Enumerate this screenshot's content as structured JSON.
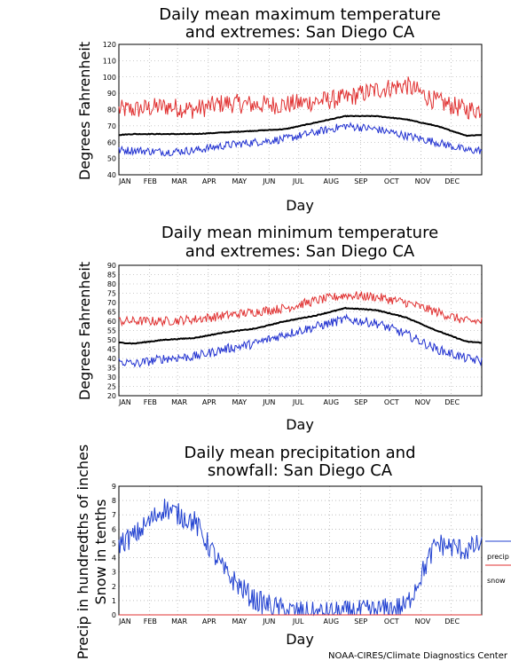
{
  "credit": "NOAA-CIRES/Climate Diagnostics Center",
  "months": [
    "JAN",
    "FEB",
    "MAR",
    "APR",
    "MAY",
    "JUN",
    "JUL",
    "AUG",
    "SEP",
    "OCT",
    "NOV",
    "DEC"
  ],
  "colors": {
    "max": "#e03030",
    "min": "#2030d0",
    "mean": "#000000",
    "precip": "#2040d0",
    "snow": "#e03030",
    "grid": "#999999"
  },
  "chart_data": [
    {
      "type": "line",
      "title_line1": "Daily mean maximum temperature",
      "title_line2": "and extremes: San Diego CA",
      "xlabel": "Day",
      "ylabel": "Degrees Fahrenheit",
      "ylim": [
        40,
        120
      ],
      "yticks": [
        40,
        50,
        60,
        70,
        80,
        90,
        100,
        110,
        120
      ],
      "grid": true,
      "series": [
        {
          "key": "max",
          "values_by_month": [
            80,
            82,
            80,
            84,
            83,
            83,
            85,
            87,
            92,
            95,
            85,
            80
          ]
        },
        {
          "key": "mean",
          "values_by_month": [
            65,
            65,
            65,
            66,
            67,
            68,
            72,
            76,
            76,
            74,
            70,
            64
          ]
        },
        {
          "key": "min",
          "values_by_month": [
            55,
            54,
            55,
            58,
            60,
            62,
            66,
            70,
            68,
            64,
            60,
            55
          ]
        }
      ]
    },
    {
      "type": "line",
      "title_line1": "Daily mean minimum temperature",
      "title_line2": "and extremes: San Diego CA",
      "xlabel": "Day",
      "ylabel": "Degrees Fahrenheit",
      "ylim": [
        20,
        90
      ],
      "yticks": [
        20,
        25,
        30,
        35,
        40,
        45,
        50,
        55,
        60,
        65,
        70,
        75,
        80,
        85,
        90
      ],
      "grid": true,
      "series": [
        {
          "key": "max",
          "values_by_month": [
            60,
            60,
            61,
            63,
            65,
            67,
            71,
            74,
            73,
            70,
            65,
            60
          ]
        },
        {
          "key": "mean",
          "values_by_month": [
            48,
            50,
            51,
            54,
            56,
            60,
            63,
            67,
            66,
            62,
            55,
            49
          ]
        },
        {
          "key": "min",
          "values_by_month": [
            37,
            40,
            41,
            45,
            48,
            53,
            57,
            61,
            59,
            53,
            45,
            40
          ]
        }
      ]
    },
    {
      "type": "line",
      "title_line1": "Daily mean precipitation and",
      "title_line2": "snowfall: San Diego CA",
      "xlabel": "Day",
      "ylabel_line1": "Precip in hundredths of inches",
      "ylabel_line2": "Snow in tenths",
      "ylim": [
        0,
        9
      ],
      "yticks": [
        0,
        1,
        2,
        3,
        4,
        5,
        6,
        7,
        8,
        9
      ],
      "grid": true,
      "legend": [
        "precip",
        "snow"
      ],
      "legend_position": "right",
      "series": [
        {
          "key": "precip",
          "values_by_month": [
            5.5,
            7.5,
            6.5,
            3,
            1,
            0.3,
            0.1,
            0.2,
            0.3,
            0.6,
            5,
            4.5
          ]
        },
        {
          "key": "snow",
          "values_by_month": [
            0,
            0,
            0,
            0,
            0,
            0,
            0,
            0,
            0,
            0,
            0,
            0
          ]
        }
      ]
    }
  ]
}
